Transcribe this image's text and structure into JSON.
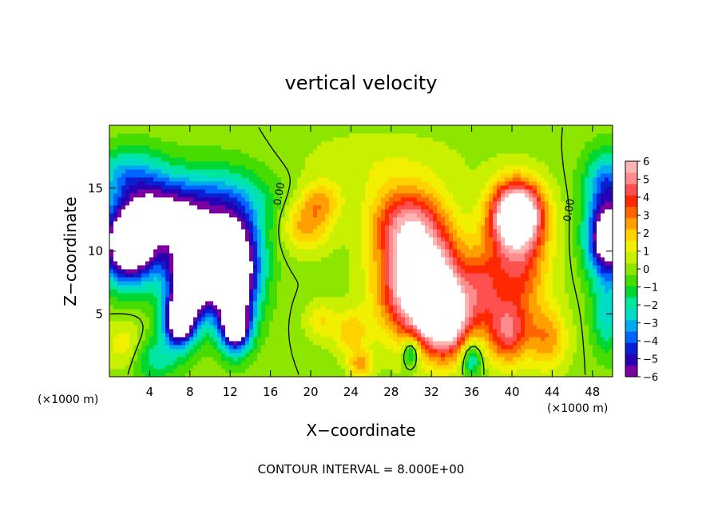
{
  "chart_data": {
    "type": "heatmap",
    "title": "vertical velocity",
    "xlabel": "X−coordinate",
    "ylabel": "Z−coordinate",
    "x_unit_label_left": "(×1000 m)",
    "x_unit_label_right": "(×1000 m)",
    "footer": "CONTOUR INTERVAL = 8.000E+00",
    "xlim": [
      0,
      50
    ],
    "ylim": [
      0,
      20
    ],
    "x_ticks": [
      4,
      8,
      12,
      16,
      20,
      24,
      28,
      32,
      36,
      40,
      44,
      48
    ],
    "x_tick_labels": [
      "4",
      "8",
      "12",
      "16",
      "20",
      "24",
      "28",
      "32",
      "36",
      "40",
      "44",
      "48"
    ],
    "y_ticks": [
      5,
      10,
      15
    ],
    "y_tick_labels": [
      "5",
      "10",
      "15"
    ],
    "colorbar": {
      "min": -6,
      "max": 6,
      "tick_labels": [
        "6",
        "5",
        "4",
        "3",
        "2",
        "1",
        "0",
        "−1",
        "−2",
        "−3",
        "−4",
        "−5",
        "−6"
      ],
      "colors": [
        "#7a00a0",
        "#2800b4",
        "#0a1ed2",
        "#0064ff",
        "#00aaf0",
        "#00dcc8",
        "#00e6a0",
        "#00d732",
        "#46dc00",
        "#8ce600",
        "#c8f000",
        "#f0f000",
        "#ffd200",
        "#ffa000",
        "#ff6400",
        "#ff2800",
        "#ff5050",
        "#ff8c8c",
        "#ffb4b4"
      ]
    },
    "contour_labels": [
      {
        "text": "0.00",
        "x": 17.2,
        "y": 14.5
      },
      {
        "text": "0.00",
        "x": 46.0,
        "y": 13.2
      }
    ],
    "blobs": [
      {
        "x": 2.0,
        "y": 10.5,
        "sx": 2.8,
        "sy": 3.0,
        "a": -9
      },
      {
        "x": 2.0,
        "y": 16.0,
        "sx": 3.5,
        "sy": 2.2,
        "a": -3
      },
      {
        "x": 8.5,
        "y": 8.5,
        "sx": 2.6,
        "sy": 3.2,
        "a": -10
      },
      {
        "x": 7.0,
        "y": 4.5,
        "sx": 1.6,
        "sy": 2.0,
        "a": -8
      },
      {
        "x": 12.5,
        "y": 8.5,
        "sx": 2.4,
        "sy": 3.8,
        "a": -9
      },
      {
        "x": 12.5,
        "y": 4.0,
        "sx": 1.5,
        "sy": 2.0,
        "a": -7
      },
      {
        "x": 10.0,
        "y": 13.5,
        "sx": 5.5,
        "sy": 3.0,
        "a": -4
      },
      {
        "x": 5.0,
        "y": 13.0,
        "sx": 3.5,
        "sy": 2.5,
        "a": -4
      },
      {
        "x": 1.5,
        "y": 2.5,
        "sx": 2.0,
        "sy": 2.0,
        "a": 1.5
      },
      {
        "x": 4.5,
        "y": 1.5,
        "sx": 2.5,
        "sy": 1.8,
        "a": -2
      },
      {
        "x": 19.5,
        "y": 12.0,
        "sx": 2.5,
        "sy": 2.0,
        "a": 2.5
      },
      {
        "x": 21.0,
        "y": 14.0,
        "sx": 2.0,
        "sy": 1.6,
        "a": 2
      },
      {
        "x": 21.0,
        "y": 4.5,
        "sx": 1.5,
        "sy": 1.5,
        "a": 1.5
      },
      {
        "x": 24.0,
        "y": 3.5,
        "sx": 1.8,
        "sy": 1.8,
        "a": 2
      },
      {
        "x": 25.0,
        "y": 1.0,
        "sx": 1.2,
        "sy": 1.0,
        "a": 2.5
      },
      {
        "x": 31.0,
        "y": 7.5,
        "sx": 3.8,
        "sy": 4.2,
        "a": 9
      },
      {
        "x": 33.5,
        "y": 4.5,
        "sx": 2.5,
        "sy": 3.0,
        "a": 6
      },
      {
        "x": 29.5,
        "y": 12.5,
        "sx": 3.5,
        "sy": 2.8,
        "a": 4
      },
      {
        "x": 40.5,
        "y": 13.0,
        "sx": 2.5,
        "sy": 2.5,
        "a": 8
      },
      {
        "x": 40.5,
        "y": 9.0,
        "sx": 3.0,
        "sy": 4.5,
        "a": 4
      },
      {
        "x": 39.5,
        "y": 3.5,
        "sx": 2.0,
        "sy": 2.5,
        "a": 4
      },
      {
        "x": 37.0,
        "y": 7.0,
        "sx": 1.8,
        "sy": 3.0,
        "a": 2.5
      },
      {
        "x": 43.5,
        "y": 3.0,
        "sx": 2.0,
        "sy": 2.5,
        "a": 2.5
      },
      {
        "x": 36.0,
        "y": 1.5,
        "sx": 1.0,
        "sy": 1.5,
        "a": -3
      },
      {
        "x": 30.0,
        "y": 2.0,
        "sx": 0.8,
        "sy": 1.2,
        "a": -3
      },
      {
        "x": 49.5,
        "y": 11.0,
        "sx": 2.0,
        "sy": 3.0,
        "a": -8
      },
      {
        "x": 49.5,
        "y": 15.5,
        "sx": 2.2,
        "sy": 2.5,
        "a": -3.5
      },
      {
        "x": 49.5,
        "y": 5.0,
        "sx": 1.5,
        "sy": 3.0,
        "a": -2.5
      },
      {
        "x": 27.0,
        "y": 17.0,
        "sx": 8.0,
        "sy": 2.5,
        "a": 0.8
      }
    ]
  }
}
